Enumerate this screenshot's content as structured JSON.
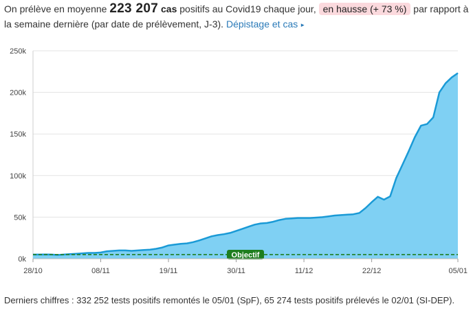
{
  "header": {
    "prefix": "On prélève en moyenne",
    "value": "223 207",
    "unit": "cas",
    "middle": "positifs au Covid19 chaque jour,",
    "trend_badge": "en hausse (+ 73 %)",
    "suffix": "par rapport à la semaine dernière (par date de prélèvement, J-3).",
    "link_label": "Dépistage et cas"
  },
  "chart_data": {
    "type": "area",
    "title": "",
    "xlabel": "",
    "ylabel": "",
    "ylim": [
      0,
      250000
    ],
    "y_ticks": [
      0,
      50000,
      100000,
      150000,
      200000,
      250000
    ],
    "y_tick_labels": [
      "0k",
      "50k",
      "100k",
      "150k",
      "200k",
      "250k"
    ],
    "x_tick_labels": [
      "28/10",
      "08/11",
      "19/11",
      "30/11",
      "11/12",
      "22/12",
      "05/01"
    ],
    "x_tick_days": [
      0,
      11,
      22,
      33,
      44,
      55,
      69
    ],
    "grid": true,
    "colors": {
      "line": "#1a9ad6",
      "fill": "#7fd0f3",
      "objective": "#1e7e1e"
    },
    "objective": {
      "label": "Objectif",
      "value": 5000
    },
    "x": [
      "28/10",
      "29/10",
      "30/10",
      "31/10",
      "01/11",
      "02/11",
      "03/11",
      "04/11",
      "05/11",
      "06/11",
      "07/11",
      "08/11",
      "09/11",
      "10/11",
      "11/11",
      "12/11",
      "13/11",
      "14/11",
      "15/11",
      "16/11",
      "17/11",
      "18/11",
      "19/11",
      "20/11",
      "21/11",
      "22/11",
      "23/11",
      "24/11",
      "25/11",
      "26/11",
      "27/11",
      "28/11",
      "29/11",
      "30/11",
      "01/12",
      "02/12",
      "03/12",
      "04/12",
      "05/12",
      "06/12",
      "07/12",
      "08/12",
      "09/12",
      "10/12",
      "11/12",
      "12/12",
      "13/12",
      "14/12",
      "15/12",
      "16/12",
      "17/12",
      "18/12",
      "19/12",
      "20/12",
      "21/12",
      "22/12",
      "23/12",
      "24/12",
      "25/12",
      "26/12",
      "27/12",
      "28/12",
      "29/12",
      "30/12",
      "31/12",
      "01/01",
      "02/01",
      "03/01",
      "04/01",
      "05/01"
    ],
    "values": [
      5000,
      5000,
      5100,
      5000,
      4500,
      5000,
      5500,
      6000,
      6500,
      7000,
      7000,
      7500,
      9000,
      9500,
      10000,
      10000,
      9500,
      10000,
      10500,
      11000,
      12000,
      13500,
      16000,
      17000,
      18000,
      18500,
      20000,
      22000,
      24500,
      27000,
      28500,
      29500,
      31000,
      33500,
      36000,
      38500,
      41000,
      42500,
      43000,
      44500,
      46500,
      48000,
      48500,
      49000,
      49000,
      49000,
      49500,
      50000,
      51000,
      52000,
      52500,
      53000,
      53500,
      55000,
      61000,
      68000,
      74500,
      71000,
      75000,
      97000,
      113000,
      129000,
      146000,
      160000,
      162000,
      170000,
      200000,
      211000,
      218000,
      223207
    ]
  },
  "footer": {
    "text": "Derniers chiffres : 332 252 tests positifs remontés le 05/01 (SpF), 65 274 tests positifs prélevés le 02/01 (SI-DEP)."
  }
}
